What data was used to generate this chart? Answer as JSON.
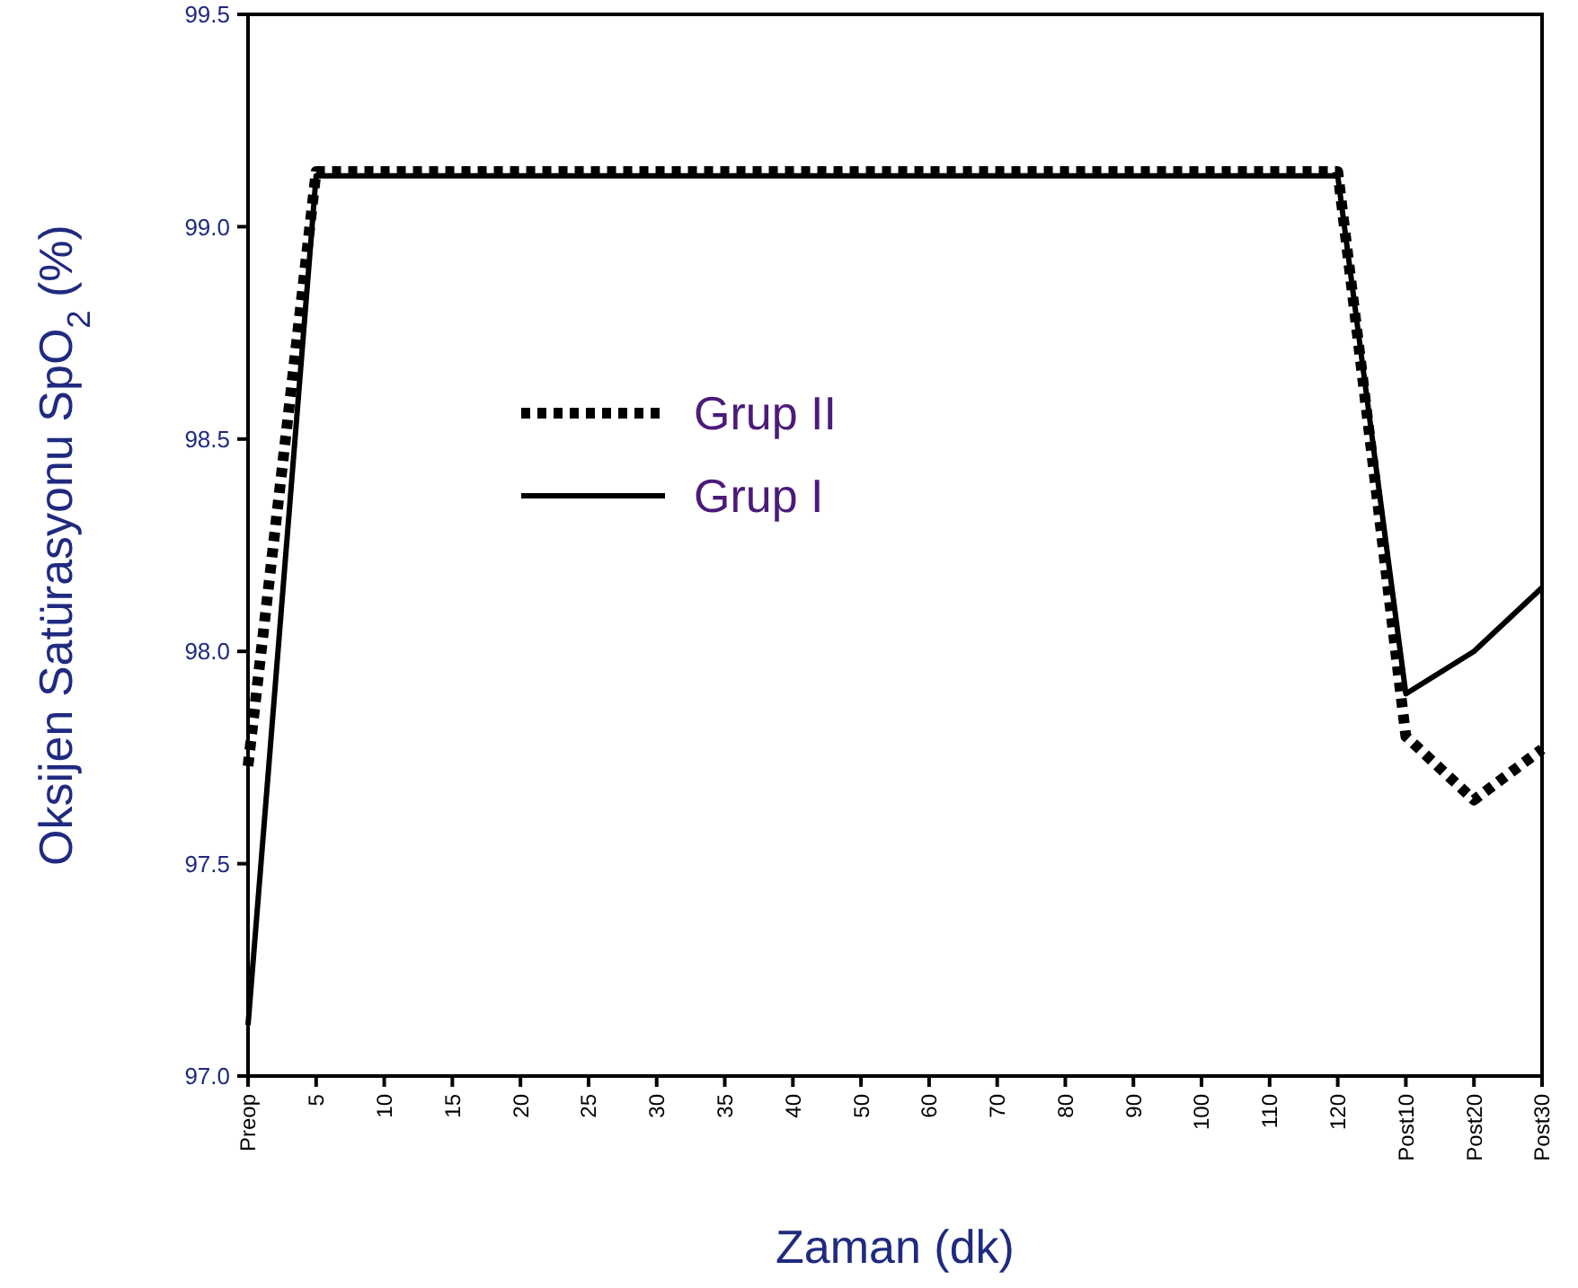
{
  "chart_data": {
    "type": "line",
    "xlabel": "Zaman (dk)",
    "ylabel": "Oksijen Satürasyonu SpO$_{2}$ (%)",
    "categories": [
      "Preop",
      "5",
      "10",
      "15",
      "20",
      "25",
      "30",
      "35",
      "40",
      "50",
      "60",
      "70",
      "80",
      "90",
      "100",
      "110",
      "120",
      "Post10",
      "Post20",
      "Post30"
    ],
    "series": [
      {
        "name": "Grup II",
        "color": "#000000",
        "line_style": "dotted",
        "values": [
          97.73,
          99.13,
          99.13,
          99.13,
          99.13,
          99.13,
          99.13,
          99.13,
          99.13,
          99.13,
          99.13,
          99.13,
          99.13,
          99.13,
          99.13,
          99.13,
          99.13,
          97.8,
          97.65,
          97.77
        ]
      },
      {
        "name": "Grup I",
        "color": "#000000",
        "line_style": "solid",
        "values": [
          97.12,
          99.12,
          99.12,
          99.12,
          99.12,
          99.12,
          99.12,
          99.12,
          99.12,
          99.12,
          99.12,
          99.12,
          99.12,
          99.12,
          99.12,
          99.12,
          99.12,
          97.9,
          98.0,
          98.15
        ]
      }
    ],
    "ylim": [
      97.0,
      99.5
    ],
    "yticks": [
      {
        "value": 97,
        "label": "97.0"
      },
      {
        "value": 97.5,
        "label": "97.5"
      },
      {
        "value": 98,
        "label": "98.0"
      },
      {
        "value": 98.5,
        "label": "98.5"
      },
      {
        "value": 99,
        "label": "99.0"
      },
      {
        "value": 99.5,
        "label": "99.5"
      }
    ],
    "grid": false,
    "legend": "center",
    "marker": "none"
  }
}
